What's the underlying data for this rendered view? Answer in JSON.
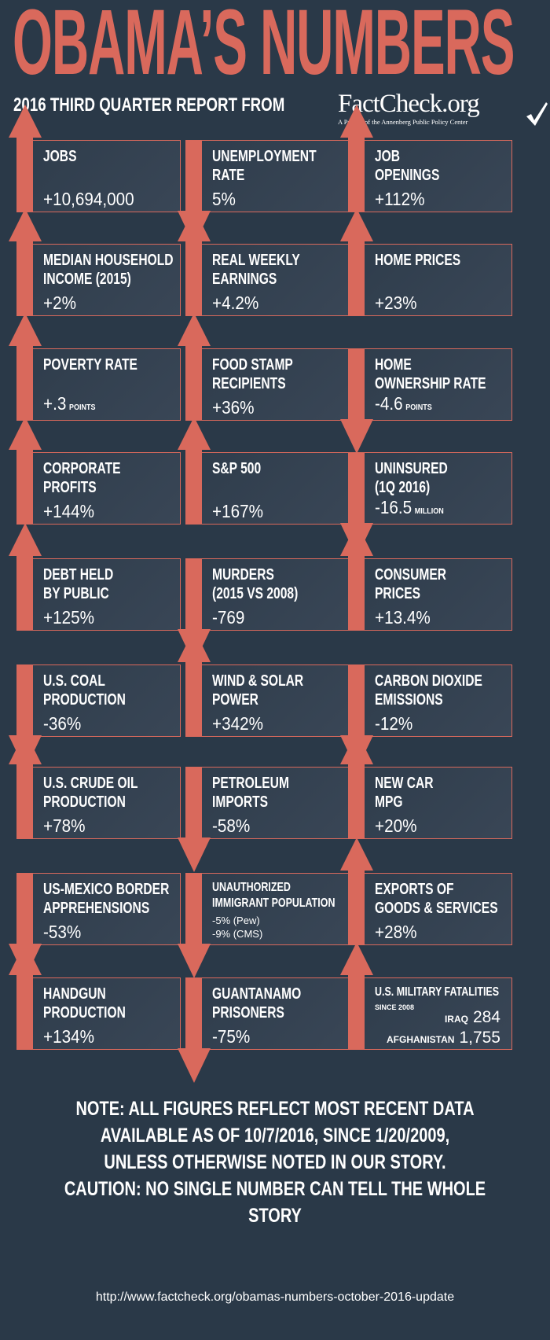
{
  "header": {
    "title": "OBAMA’S NUMBERS",
    "subtitle": "2016 THIRD QUARTER REPORT FROM",
    "logo_name": "FactCheck.org",
    "logo_tagline": "A Project of the Annenberg Public Policy Center"
  },
  "colors": {
    "background": "#2a3948",
    "accent": "#d9695c",
    "card": "#343f4e",
    "text": "#ffffff"
  },
  "cards": [
    {
      "direction": "up",
      "title": [
        "JOBS"
      ],
      "value": "+10,694,000"
    },
    {
      "direction": "down",
      "title": [
        "UNEMPLOYMENT",
        "RATE"
      ],
      "value": "5%"
    },
    {
      "direction": "up",
      "title": [
        "JOB",
        "OPENINGS"
      ],
      "value": "+112%"
    },
    {
      "direction": "up",
      "title": [
        "MEDIAN HOUSEHOLD",
        "INCOME (2015)"
      ],
      "value": "+2%"
    },
    {
      "direction": "up",
      "title": [
        "REAL WEEKLY",
        "EARNINGS"
      ],
      "value": "+4.2%"
    },
    {
      "direction": "up",
      "title": [
        "HOME PRICES"
      ],
      "value": "+23%"
    },
    {
      "direction": "up",
      "title": [
        "POVERTY RATE"
      ],
      "value": "+.3",
      "unit": "POINTS"
    },
    {
      "direction": "up",
      "title": [
        "FOOD STAMP",
        "RECIPIENTS"
      ],
      "value": "+36%"
    },
    {
      "direction": "down",
      "title": [
        "HOME",
        "OWNERSHIP RATE"
      ],
      "value": "-4.6",
      "unit": "POINTS"
    },
    {
      "direction": "up",
      "title": [
        "CORPORATE",
        "PROFITS"
      ],
      "value": "+144%"
    },
    {
      "direction": "up",
      "title": [
        "S&P 500"
      ],
      "value": "+167%"
    },
    {
      "direction": "down",
      "title": [
        "UNINSURED",
        "(1Q 2016)"
      ],
      "value": "-16.5",
      "unit": "MILLION"
    },
    {
      "direction": "up",
      "title": [
        "DEBT HELD",
        "BY PUBLIC"
      ],
      "value": "+125%"
    },
    {
      "direction": "down",
      "title": [
        "MURDERS",
        "(2015 VS 2008)"
      ],
      "value": "-769"
    },
    {
      "direction": "up",
      "title": [
        "CONSUMER",
        "PRICES"
      ],
      "value": "+13.4%"
    },
    {
      "direction": "down",
      "title": [
        "U.S. COAL",
        "PRODUCTION"
      ],
      "value": "-36%"
    },
    {
      "direction": "up",
      "title": [
        "WIND & SOLAR",
        "POWER"
      ],
      "value": "+342%"
    },
    {
      "direction": "down",
      "title": [
        "CARBON DIOXIDE",
        "EMISSIONS"
      ],
      "value": "-12%"
    },
    {
      "direction": "up",
      "title": [
        "U.S. CRUDE OIL",
        "PRODUCTION"
      ],
      "value": "+78%"
    },
    {
      "direction": "down",
      "title": [
        "PETROLEUM",
        "IMPORTS"
      ],
      "value": "-58%"
    },
    {
      "direction": "up",
      "title": [
        "NEW CAR",
        "MPG"
      ],
      "value": "+20%"
    },
    {
      "direction": "down",
      "title": [
        "US-MEXICO BORDER",
        "APPREHENSIONS"
      ],
      "value": "-53%"
    },
    {
      "direction": "down",
      "title": [
        "UNAUTHORIZED",
        "IMMIGRANT POPULATION"
      ],
      "values": [
        "-5% (Pew)",
        "-9% (CMS)"
      ]
    },
    {
      "direction": "up",
      "title": [
        "EXPORTS OF",
        "GOODS & SERVICES"
      ],
      "value": "+28%"
    },
    {
      "direction": "up",
      "title": [
        "HANDGUN",
        "PRODUCTION"
      ],
      "value": "+134%"
    },
    {
      "direction": "down",
      "title": [
        "GUANTANAMO",
        "PRISONERS"
      ],
      "value": "-75%"
    },
    {
      "direction": "up",
      "title": [
        "U.S. MILITARY FATALITIES"
      ],
      "subtitle": "SINCE 2008",
      "rows": [
        {
          "label": "IRAQ",
          "value": "284"
        },
        {
          "label": "AFGHANISTAN",
          "value": "1,755"
        }
      ]
    }
  ],
  "footer": {
    "note_lines": [
      "NOTE:  ALL FIGURES REFLECT MOST RECENT DATA",
      "AVAILABLE AS OF 10/7/2016, SINCE 1/20/2009,",
      "UNLESS OTHERWISE NOTED IN OUR STORY.",
      "CAUTION: NO SINGLE NUMBER CAN TELL THE WHOLE STORY"
    ],
    "url": "http://www.factcheck.org/obamas-numbers-october-2016-update"
  }
}
